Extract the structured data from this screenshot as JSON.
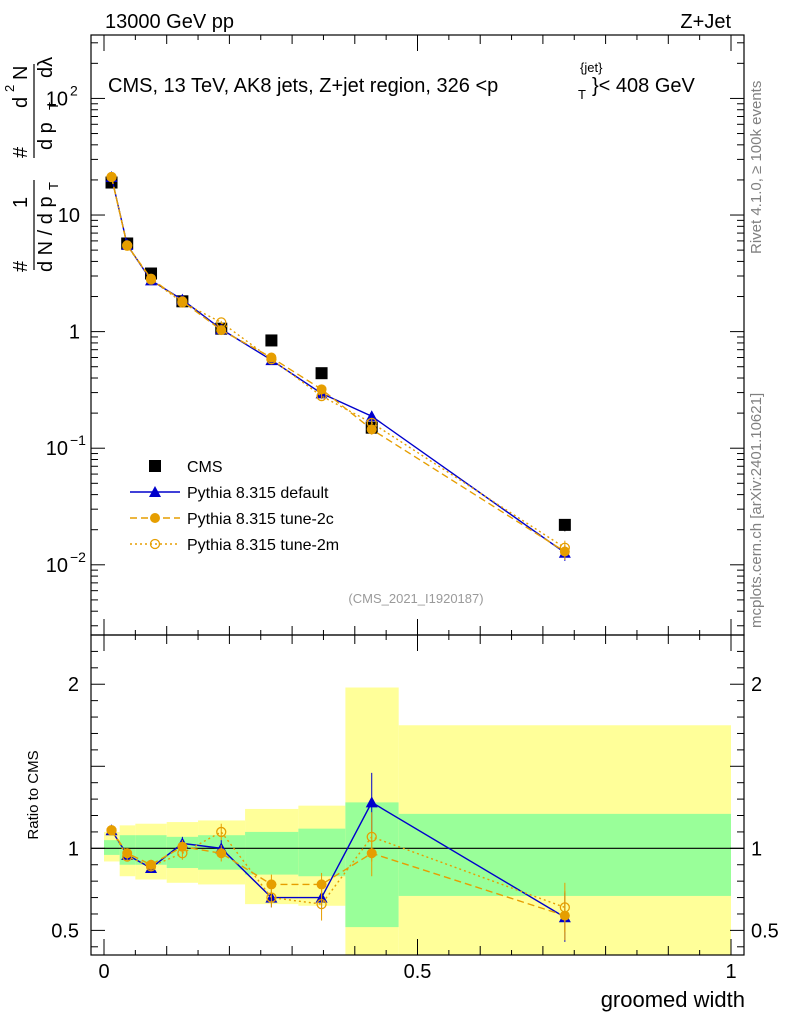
{
  "header": {
    "left": "13000 GeV pp",
    "right": "Z+Jet",
    "side_top": "Rivet 4.1.0, ≥ 100k events",
    "side_bottom": "mcplots.cern.ch [arXiv:2401.10621]"
  },
  "chart_data": [
    {
      "type": "scatter",
      "panel": "main",
      "title": "CMS, 13 TeV, AK8 jets, Z+jet region, 326 <p_T^{jet}< 408 GeV",
      "title_parts": {
        "main": "CMS, 13 TeV, AK8 jets, Z+jet region, 326 <p",
        "sup": "{jet}",
        "sub": "T",
        "end": "}< 408 GeV"
      },
      "ylabel": "1/dN/dp_T  d²N/dp_T dλ",
      "ylabel_parts": {
        "num1": "1",
        "den1": "d N / d p",
        "num2": "d",
        "den2": "d p",
        "lambda": "dλ",
        "sq": "2",
        "sub": "T",
        "hash": "#"
      },
      "yscale": "log",
      "ylim": [
        0.0025,
        350
      ],
      "xlim": [
        -0.02,
        1.0
      ],
      "watermark": "(CMS_2021_I1920187)",
      "y_ticks": [
        {
          "value": 0.01,
          "base": "10",
          "exp": "−2"
        },
        {
          "value": 0.1,
          "base": "10",
          "exp": "−1"
        },
        {
          "value": 1,
          "base": "1",
          "exp": ""
        },
        {
          "value": 10,
          "base": "10",
          "exp": ""
        },
        {
          "value": 100,
          "base": "10",
          "exp": "2"
        }
      ],
      "legend_position": "lower-left",
      "series": [
        {
          "name": "CMS",
          "color": "#000000",
          "marker": "square",
          "line": "none",
          "x": [
            0.012,
            0.037,
            0.075,
            0.125,
            0.187,
            0.267,
            0.347,
            0.427,
            0.735
          ],
          "y": [
            19.0,
            5.7,
            3.15,
            1.82,
            1.06,
            0.84,
            0.44,
            0.15,
            0.022
          ],
          "yerr_rel": [
            0.03,
            0.03,
            0.03,
            0.03,
            0.03,
            0.04,
            0.05,
            0.08,
            0.12
          ]
        },
        {
          "name": "Pythia 8.315 default",
          "color": "#0000cc",
          "marker": "triangle",
          "line": "solid",
          "x": [
            0.012,
            0.037,
            0.075,
            0.125,
            0.187,
            0.267,
            0.347,
            0.427,
            0.735
          ],
          "y": [
            21.2,
            5.55,
            2.75,
            1.88,
            1.05,
            0.57,
            0.295,
            0.188,
            0.0127
          ],
          "yerr_rel": [
            0.02,
            0.02,
            0.02,
            0.03,
            0.03,
            0.05,
            0.06,
            0.1,
            0.15
          ]
        },
        {
          "name": "Pythia 8.315 tune-2c",
          "color": "#e69e00",
          "marker": "circle",
          "line": "dashed",
          "x": [
            0.012,
            0.037,
            0.075,
            0.125,
            0.187,
            0.267,
            0.347,
            0.427,
            0.735
          ],
          "y": [
            21.2,
            5.5,
            2.85,
            1.82,
            1.03,
            0.6,
            0.32,
            0.145,
            0.013
          ],
          "yerr_rel": [
            0.02,
            0.02,
            0.02,
            0.03,
            0.03,
            0.05,
            0.06,
            0.1,
            0.15
          ]
        },
        {
          "name": "Pythia 8.315 tune-2m",
          "color": "#e69e00",
          "marker": "circle-open",
          "line": "dotted",
          "x": [
            0.012,
            0.037,
            0.075,
            0.125,
            0.187,
            0.267,
            0.347,
            0.427,
            0.735
          ],
          "y": [
            21.2,
            5.45,
            2.8,
            1.78,
            1.2,
            0.58,
            0.28,
            0.165,
            0.014
          ],
          "yerr_rel": [
            0.02,
            0.02,
            0.02,
            0.03,
            0.03,
            0.05,
            0.06,
            0.1,
            0.15
          ]
        }
      ]
    },
    {
      "type": "scatter",
      "panel": "ratio",
      "ylabel": "Ratio to CMS",
      "xlabel": "groomed width",
      "ylim": [
        0.35,
        2.3
      ],
      "xlim": [
        -0.02,
        1.0
      ],
      "reference_line": 1,
      "y_ticks": [
        0.5,
        1,
        2
      ],
      "y_tick_labels": [
        "0.5",
        "1",
        "2"
      ],
      "x_ticks": [
        0,
        0.5,
        1
      ],
      "x_tick_labels": [
        "0",
        "0.5",
        "1"
      ],
      "bin_edges": [
        0.0,
        0.025,
        0.05,
        0.1,
        0.15,
        0.225,
        0.31,
        0.385,
        0.47,
        1.0
      ],
      "band_inner": [
        [
          0.96,
          1.05
        ],
        [
          0.9,
          1.08
        ],
        [
          0.9,
          1.08
        ],
        [
          0.88,
          1.07
        ],
        [
          0.87,
          1.08
        ],
        [
          0.84,
          1.1
        ],
        [
          0.83,
          1.12
        ],
        [
          0.52,
          1.28
        ],
        [
          0.71,
          1.21
        ]
      ],
      "band_outer": [
        [
          0.92,
          1.1
        ],
        [
          0.83,
          1.14
        ],
        [
          0.81,
          1.15
        ],
        [
          0.79,
          1.16
        ],
        [
          0.78,
          1.17
        ],
        [
          0.66,
          1.24
        ],
        [
          0.65,
          1.26
        ],
        [
          0.35,
          1.98
        ],
        [
          0.35,
          1.75
        ]
      ],
      "series": [
        {
          "name": "Pythia 8.315 default",
          "color": "#0000cc",
          "marker": "triangle",
          "line": "solid",
          "x": [
            0.012,
            0.037,
            0.075,
            0.125,
            0.187,
            0.267,
            0.347,
            0.427,
            0.735
          ],
          "y": [
            1.11,
            0.96,
            0.88,
            1.03,
            1.0,
            0.7,
            0.7,
            1.28,
            0.58
          ],
          "yerr": [
            0.02,
            0.03,
            0.03,
            0.04,
            0.05,
            0.06,
            0.07,
            0.18,
            0.15
          ]
        },
        {
          "name": "Pythia 8.315 tune-2c",
          "color": "#e69e00",
          "marker": "circle",
          "line": "dashed",
          "x": [
            0.012,
            0.037,
            0.075,
            0.125,
            0.187,
            0.267,
            0.347,
            0.427,
            0.735
          ],
          "y": [
            1.11,
            0.97,
            0.9,
            1.01,
            0.97,
            0.78,
            0.78,
            0.97,
            0.59
          ],
          "yerr": [
            0.02,
            0.03,
            0.03,
            0.04,
            0.05,
            0.06,
            0.07,
            0.14,
            0.15
          ]
        },
        {
          "name": "Pythia 8.315 tune-2m",
          "color": "#e69e00",
          "marker": "circle-open",
          "line": "dotted",
          "x": [
            0.012,
            0.037,
            0.075,
            0.125,
            0.187,
            0.267,
            0.347,
            0.427,
            0.735
          ],
          "y": [
            1.11,
            0.95,
            0.89,
            0.97,
            1.1,
            0.7,
            0.66,
            1.07,
            0.64
          ],
          "yerr": [
            0.02,
            0.03,
            0.03,
            0.04,
            0.05,
            0.06,
            0.1,
            0.15,
            0.15
          ]
        }
      ]
    }
  ]
}
